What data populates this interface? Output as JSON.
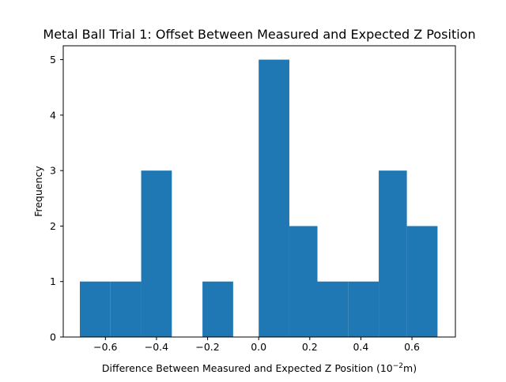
{
  "chart_data": {
    "type": "bar",
    "title": "Metal Ball Trial 1: Offset Between Measured and Expected Z Position",
    "xlabel_main": "Difference Between Measured and Expected Z Position (10",
    "xlabel_sup": "−2",
    "xlabel_unit": "m)",
    "ylabel": "Frequency",
    "bins": [
      {
        "start": -0.7,
        "end": -0.58,
        "count": 1
      },
      {
        "start": -0.58,
        "end": -0.46,
        "count": 1
      },
      {
        "start": -0.46,
        "end": -0.34,
        "count": 3
      },
      {
        "start": -0.34,
        "end": -0.22,
        "count": 0
      },
      {
        "start": -0.22,
        "end": -0.1,
        "count": 1
      },
      {
        "start": -0.1,
        "end": 0.0,
        "count": 0
      },
      {
        "start": 0.0,
        "end": 0.12,
        "count": 5
      },
      {
        "start": 0.12,
        "end": 0.23,
        "count": 2
      },
      {
        "start": 0.23,
        "end": 0.35,
        "count": 1
      },
      {
        "start": 0.35,
        "end": 0.47,
        "count": 1
      },
      {
        "start": 0.47,
        "end": 0.58,
        "count": 3
      },
      {
        "start": 0.58,
        "end": 0.7,
        "count": 2
      }
    ],
    "xlim": [
      -0.765,
      0.77
    ],
    "ylim": [
      0,
      5.25
    ],
    "xticks": [
      -0.6,
      -0.4,
      -0.2,
      0.0,
      0.2,
      0.4,
      0.6
    ],
    "xtick_labels": [
      "−0.6",
      "−0.4",
      "−0.2",
      "0.0",
      "0.2",
      "0.4",
      "0.6"
    ],
    "yticks": [
      0,
      1,
      2,
      3,
      4,
      5
    ],
    "ytick_labels": [
      "0",
      "1",
      "2",
      "3",
      "4",
      "5"
    ],
    "bar_color": "#1f77b4",
    "grid": false,
    "legend": "none"
  }
}
